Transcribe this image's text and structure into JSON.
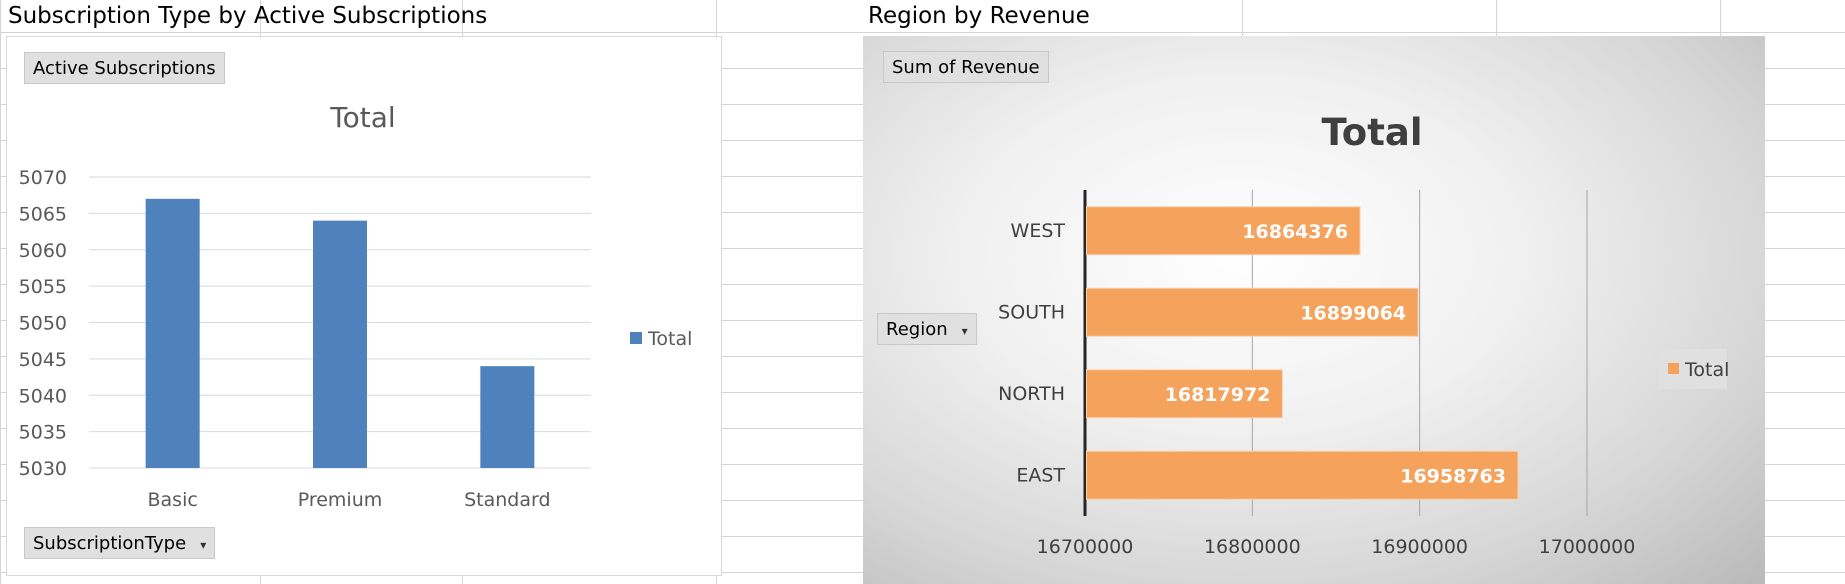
{
  "sheet": {
    "left_title": "Subscription Type by Active Subscriptions",
    "right_title": "Region by Revenue"
  },
  "left_chart": {
    "field_button": "Active Subscriptions",
    "axis_field_button": "SubscriptionType",
    "dropdown_glyph": "▾",
    "legend_label": "Total",
    "bar_color": "#4f81bd"
  },
  "right_chart": {
    "field_button": "Sum of Revenue",
    "axis_field_button": "Region",
    "dropdown_glyph": "▾",
    "legend_label": "Total",
    "bar_color": "#f5a25d"
  },
  "chart_data": [
    {
      "type": "bar",
      "title": "Total",
      "categories": [
        "Basic",
        "Premium",
        "Standard"
      ],
      "series": [
        {
          "name": "Total",
          "values": [
            5067,
            5064,
            5044
          ]
        }
      ],
      "ylim": [
        5030,
        5070
      ],
      "yticks": [
        "5030",
        "5035",
        "5040",
        "5045",
        "5050",
        "5055",
        "5060",
        "5065",
        "5070"
      ],
      "grid": true,
      "legend": "right"
    },
    {
      "type": "bar",
      "orientation": "horizontal",
      "title": "Total",
      "categories": [
        "EAST",
        "NORTH",
        "SOUTH",
        "WEST"
      ],
      "series": [
        {
          "name": "Total",
          "values": [
            16958763,
            16817972,
            16899064,
            16864376
          ]
        }
      ],
      "data_labels": [
        "16958763",
        "16817972",
        "16899064",
        "16864376"
      ],
      "xlim": [
        16700000,
        17000000
      ],
      "xticks": [
        "16700000",
        "16800000",
        "16900000",
        "17000000"
      ],
      "grid": true,
      "legend": "right"
    }
  ]
}
